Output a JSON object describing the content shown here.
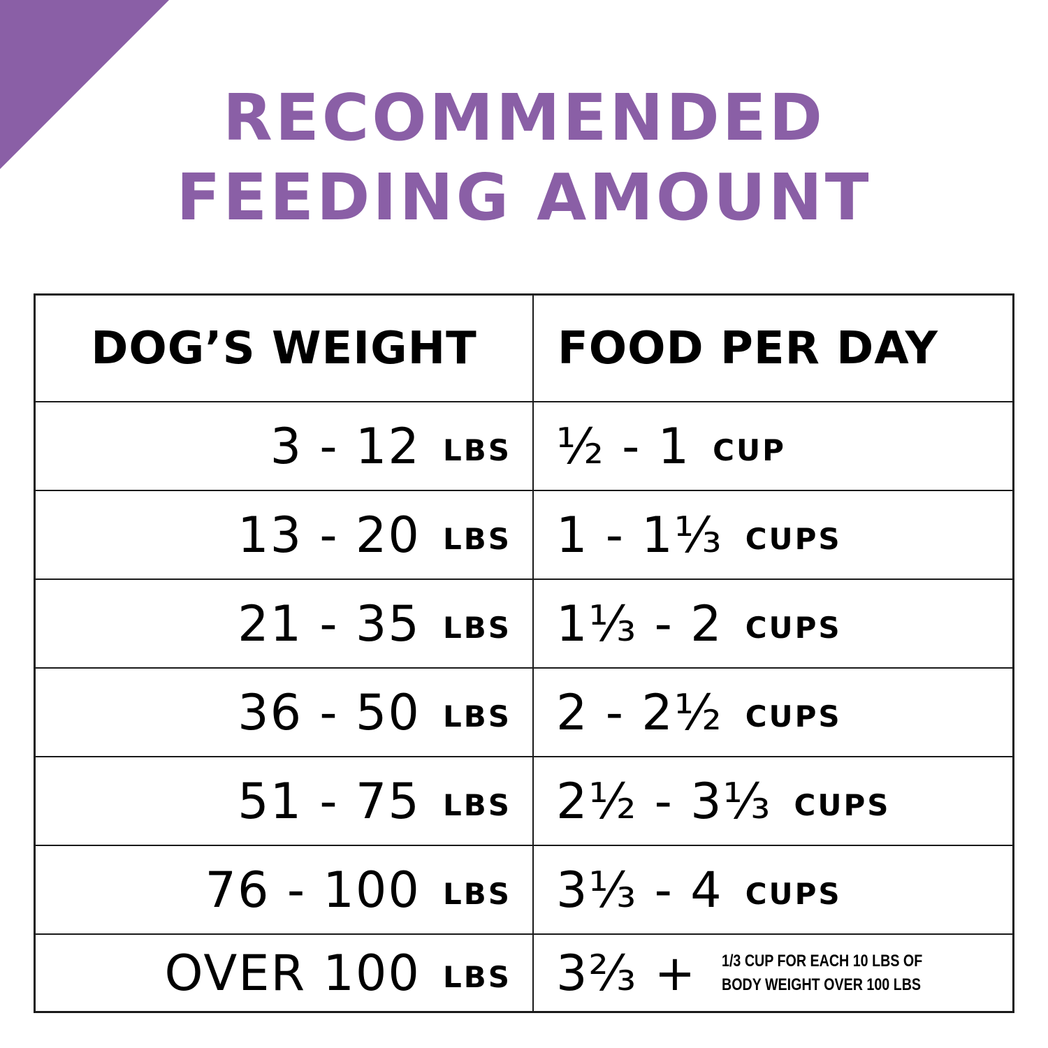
{
  "title": {
    "line1": "RECOMMENDED",
    "line2": "FEEDING AMOUNT"
  },
  "colors": {
    "accent": "#8a5fa6",
    "border": "#1a1a1a",
    "text": "#000000"
  },
  "table": {
    "headers": {
      "weight": "DOG’S WEIGHT",
      "food": "FOOD PER DAY"
    },
    "rows": [
      {
        "weight": "3 - 12",
        "weight_unit": "LBS",
        "food": "½ - 1",
        "food_unit": "CUP"
      },
      {
        "weight": "13 - 20",
        "weight_unit": "LBS",
        "food": "1 - 1⅓",
        "food_unit": "CUPS"
      },
      {
        "weight": "21 - 35",
        "weight_unit": "LBS",
        "food": "1⅓ - 2",
        "food_unit": "CUPS"
      },
      {
        "weight": "36 - 50",
        "weight_unit": "LBS",
        "food": "2 - 2½",
        "food_unit": "CUPS"
      },
      {
        "weight": "51 - 75",
        "weight_unit": "LBS",
        "food": "2½ - 3⅓",
        "food_unit": "CUPS"
      },
      {
        "weight": "76 - 100",
        "weight_unit": "LBS",
        "food": "3⅓ - 4",
        "food_unit": "CUPS"
      }
    ],
    "last_row": {
      "weight": "OVER 100",
      "weight_unit": "LBS",
      "food": "3⅔ +",
      "note_line1": "1/3 CUP FOR EACH 10 LBS OF",
      "note_line2": "BODY WEIGHT OVER 100 LBS"
    }
  }
}
